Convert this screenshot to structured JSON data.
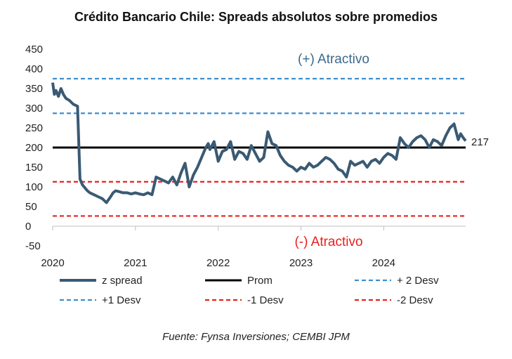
{
  "chart_data": {
    "type": "line",
    "title": "Crédito Bancario Chile: Spreads absolutos sobre promedios",
    "source": "Fuente: Fynsa Inversiones; CEMBI JPM",
    "y_ticks": [
      "450",
      "400",
      "350",
      "300",
      "250",
      "200",
      "150",
      "100",
      "50",
      "0",
      "-50"
    ],
    "ylim": [
      -50,
      450
    ],
    "x_ticks": [
      "2020",
      "2021",
      "2022",
      "2023",
      "2024"
    ],
    "xlim": [
      2020.0,
      2024.99
    ],
    "annotations": {
      "top": "(+) Atractivo",
      "bottom": "(-) Atractivo",
      "last_value": "217"
    },
    "grid": false,
    "legend_position": "bottom",
    "colors": {
      "z_spread": "#3a5a73",
      "prom": "#000000",
      "plus_dev": "#3b8fd0",
      "minus_dev": "#e8211e",
      "top_annotation": "#3a6a8c",
      "bottom_annotation": "#e8211e"
    },
    "series": [
      {
        "name": "z spread",
        "style": "solid-thick",
        "x": [
          2020.0,
          2020.02,
          2020.04,
          2020.07,
          2020.1,
          2020.13,
          2020.16,
          2020.2,
          2020.25,
          2020.3,
          2020.33,
          2020.36,
          2020.38,
          2020.4,
          2020.42,
          2020.45,
          2020.5,
          2020.55,
          2020.6,
          2020.65,
          2020.7,
          2020.73,
          2020.76,
          2020.8,
          2020.85,
          2020.9,
          2020.95,
          2021.0,
          2021.05,
          2021.1,
          2021.15,
          2021.2,
          2021.25,
          2021.3,
          2021.35,
          2021.4,
          2021.45,
          2021.5,
          2021.55,
          2021.6,
          2021.65,
          2021.7,
          2021.75,
          2021.8,
          2021.85,
          2021.88,
          2021.9,
          2021.95,
          2022.0,
          2022.05,
          2022.1,
          2022.15,
          2022.2,
          2022.25,
          2022.3,
          2022.35,
          2022.4,
          2022.45,
          2022.5,
          2022.55,
          2022.6,
          2022.65,
          2022.7,
          2022.75,
          2022.8,
          2022.85,
          2022.9,
          2022.95,
          2023.0,
          2023.05,
          2023.1,
          2023.15,
          2023.2,
          2023.25,
          2023.3,
          2023.35,
          2023.4,
          2023.45,
          2023.5,
          2023.55,
          2023.6,
          2023.65,
          2023.7,
          2023.75,
          2023.8,
          2023.85,
          2023.9,
          2023.95,
          2024.0,
          2024.05,
          2024.1,
          2024.15,
          2024.2,
          2024.25,
          2024.3,
          2024.35,
          2024.4,
          2024.45,
          2024.5,
          2024.55,
          2024.6,
          2024.65,
          2024.7,
          2024.75,
          2024.8,
          2024.85,
          2024.9,
          2024.93,
          2024.96,
          2024.99
        ],
        "values": [
          365,
          335,
          345,
          330,
          350,
          335,
          325,
          320,
          310,
          305,
          120,
          105,
          100,
          95,
          90,
          85,
          80,
          75,
          70,
          60,
          75,
          85,
          90,
          88,
          85,
          85,
          82,
          85,
          82,
          80,
          85,
          80,
          125,
          120,
          115,
          110,
          125,
          105,
          135,
          160,
          100,
          130,
          150,
          175,
          200,
          210,
          195,
          215,
          165,
          190,
          195,
          215,
          170,
          190,
          185,
          170,
          205,
          185,
          165,
          175,
          240,
          210,
          205,
          180,
          165,
          155,
          150,
          140,
          150,
          145,
          160,
          150,
          155,
          165,
          175,
          170,
          160,
          145,
          140,
          125,
          165,
          155,
          160,
          165,
          150,
          165,
          170,
          160,
          175,
          185,
          180,
          170,
          225,
          210,
          200,
          215,
          225,
          230,
          220,
          200,
          220,
          215,
          205,
          230,
          250,
          260,
          220,
          235,
          225,
          217
        ]
      },
      {
        "name": "Prom",
        "style": "solid-black",
        "value": 200
      },
      {
        "name": "+ 2 Desv",
        "style": "dashed-blue",
        "value": 375
      },
      {
        "name": "+1 Desv",
        "style": "dashed-blue",
        "value": 287
      },
      {
        "name": "-1 Desv",
        "style": "dashed-red",
        "value": 113
      },
      {
        "name": "-2 Desv",
        "style": "dashed-red",
        "value": 26
      }
    ],
    "legend": [
      {
        "label": "z spread",
        "series": "z spread"
      },
      {
        "label": "Prom",
        "series": "Prom"
      },
      {
        "label": "+ 2 Desv",
        "series": "+ 2 Desv"
      },
      {
        "label": "+1 Desv",
        "series": "+1 Desv"
      },
      {
        "label": "-1 Desv",
        "series": "-1 Desv"
      },
      {
        "label": "-2 Desv",
        "series": "-2 Desv"
      }
    ]
  }
}
